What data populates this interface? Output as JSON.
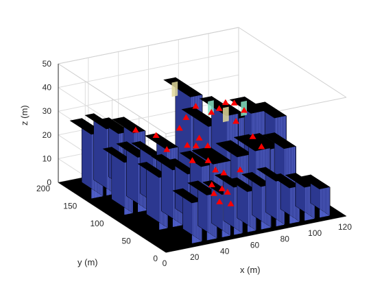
{
  "chart_data": {
    "type": "3d-bar-city",
    "title": "",
    "xlabel": "x (m)",
    "ylabel": "y (m)",
    "zlabel": "z (m)",
    "xlim": [
      0,
      120
    ],
    "ylim": [
      0,
      200
    ],
    "zlim": [
      0,
      50
    ],
    "x_ticks": [
      "0",
      "20",
      "40",
      "60",
      "80",
      "100",
      "120"
    ],
    "y_ticks": [
      "0",
      "50",
      "100",
      "150",
      "200"
    ],
    "z_ticks": [
      "0",
      "10",
      "20",
      "30",
      "40",
      "50"
    ],
    "grid": true,
    "colors": {
      "building_face": "#3f4fb8",
      "building_face_dark": "#2c3890",
      "roof": "#000000",
      "ground": "#000000",
      "highlight": "#86e3c4",
      "highlight_warm": "#e0d89a",
      "marker": "#ff0000"
    },
    "buildings": [
      {
        "x": [
          4,
          12
        ],
        "y": [
          150,
          190
        ],
        "h": 27
      },
      {
        "x": [
          14,
          20
        ],
        "y": [
          150,
          190
        ],
        "h": 28
      },
      {
        "x": [
          22,
          30
        ],
        "y": [
          150,
          190
        ],
        "h": 25
      },
      {
        "x": [
          32,
          40
        ],
        "y": [
          150,
          190
        ],
        "h": 24
      },
      {
        "x": [
          8,
          14
        ],
        "y": [
          100,
          140
        ],
        "h": 22
      },
      {
        "x": [
          17,
          24
        ],
        "y": [
          100,
          140
        ],
        "h": 23
      },
      {
        "x": [
          27,
          33
        ],
        "y": [
          100,
          140
        ],
        "h": 22
      },
      {
        "x": [
          36,
          44
        ],
        "y": [
          100,
          140
        ],
        "h": 24
      },
      {
        "x": [
          14,
          20
        ],
        "y": [
          52,
          92
        ],
        "h": 22
      },
      {
        "x": [
          23,
          30
        ],
        "y": [
          52,
          92
        ],
        "h": 24
      },
      {
        "x": [
          33,
          39
        ],
        "y": [
          52,
          92
        ],
        "h": 21
      },
      {
        "x": [
          42,
          49
        ],
        "y": [
          52,
          92
        ],
        "h": 23
      },
      {
        "x": [
          20,
          27
        ],
        "y": [
          8,
          44
        ],
        "h": 17
      },
      {
        "x": [
          30,
          37
        ],
        "y": [
          8,
          44
        ],
        "h": 19
      },
      {
        "x": [
          40,
          46
        ],
        "y": [
          8,
          44
        ],
        "h": 18
      },
      {
        "x": [
          48,
          54
        ],
        "y": [
          8,
          44
        ],
        "h": 20
      },
      {
        "x": [
          57,
          63
        ],
        "y": [
          8,
          44
        ],
        "h": 17
      },
      {
        "x": [
          66,
          73
        ],
        "y": [
          8,
          44
        ],
        "h": 18
      },
      {
        "x": [
          76,
          82
        ],
        "y": [
          8,
          44
        ],
        "h": 19
      },
      {
        "x": [
          85,
          92
        ],
        "y": [
          8,
          44
        ],
        "h": 15
      },
      {
        "x": [
          95,
          102
        ],
        "y": [
          8,
          44
        ],
        "h": 14
      },
      {
        "x": [
          105,
          112
        ],
        "y": [
          8,
          44
        ],
        "h": 12
      },
      {
        "x": [
          52,
          60
        ],
        "y": [
          100,
          150
        ],
        "h": 44
      },
      {
        "x": [
          50,
          62
        ],
        "y": [
          52,
          92
        ],
        "h": 23
      },
      {
        "x": [
          64,
          72
        ],
        "y": [
          100,
          150
        ],
        "h": 30
      },
      {
        "x": [
          66,
          76
        ],
        "y": [
          52,
          92
        ],
        "h": 24
      },
      {
        "x": [
          76,
          84
        ],
        "y": [
          100,
          150
        ],
        "h": 33
      },
      {
        "x": [
          78,
          88
        ],
        "y": [
          52,
          92
        ],
        "h": 25
      },
      {
        "x": [
          86,
          94
        ],
        "y": [
          110,
          150
        ],
        "h": 29
      },
      {
        "x": [
          90,
          98
        ],
        "y": [
          60,
          100
        ],
        "h": 23
      },
      {
        "x": [
          96,
          106
        ],
        "y": [
          110,
          150
        ],
        "h": 30
      },
      {
        "x": [
          100,
          108
        ],
        "y": [
          60,
          100
        ],
        "h": 22
      },
      {
        "x": [
          108,
          116
        ],
        "y": [
          100,
          140
        ],
        "h": 28
      }
    ],
    "markers": [
      {
        "x": 30,
        "y": 140,
        "z": 27
      },
      {
        "x": 40,
        "y": 130,
        "z": 25
      },
      {
        "x": 40,
        "y": 110,
        "z": 22
      },
      {
        "x": 50,
        "y": 100,
        "z": 24
      },
      {
        "x": 54,
        "y": 95,
        "z": 24
      },
      {
        "x": 58,
        "y": 100,
        "z": 26
      },
      {
        "x": 60,
        "y": 90,
        "z": 24
      },
      {
        "x": 48,
        "y": 85,
        "z": 20
      },
      {
        "x": 56,
        "y": 78,
        "z": 20
      },
      {
        "x": 58,
        "y": 70,
        "z": 17
      },
      {
        "x": 60,
        "y": 60,
        "z": 17
      },
      {
        "x": 52,
        "y": 60,
        "z": 13
      },
      {
        "x": 56,
        "y": 52,
        "z": 12
      },
      {
        "x": 48,
        "y": 45,
        "z": 12
      },
      {
        "x": 56,
        "y": 42,
        "z": 12
      },
      {
        "x": 50,
        "y": 40,
        "z": 9
      },
      {
        "x": 56,
        "y": 36,
        "z": 8
      },
      {
        "x": 52,
        "y": 120,
        "z": 28
      },
      {
        "x": 60,
        "y": 130,
        "z": 30
      },
      {
        "x": 70,
        "y": 140,
        "z": 32
      },
      {
        "x": 75,
        "y": 125,
        "z": 31
      },
      {
        "x": 82,
        "y": 130,
        "z": 31
      },
      {
        "x": 88,
        "y": 135,
        "z": 32
      },
      {
        "x": 92,
        "y": 130,
        "z": 32
      },
      {
        "x": 95,
        "y": 120,
        "z": 30
      },
      {
        "x": 86,
        "y": 110,
        "z": 28
      },
      {
        "x": 90,
        "y": 90,
        "z": 24
      },
      {
        "x": 94,
        "y": 85,
        "z": 20
      },
      {
        "x": 78,
        "y": 80,
        "z": 13
      }
    ]
  }
}
